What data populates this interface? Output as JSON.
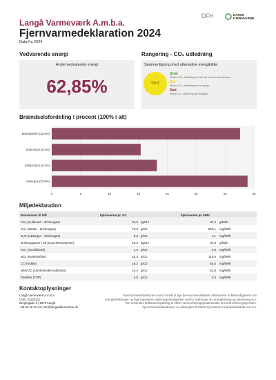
{
  "header": {
    "company": "Langå Varmeværk A.m.b.a.",
    "title": "Fjernvarmedeklaration 2024",
    "subtitle": "Data fra 2024",
    "logo_left": "DFH",
    "logo_right": "DANSK FJERNVARME"
  },
  "renewable": {
    "heading": "Vedvarende energi",
    "label": "Andel vedvarende energi",
    "value": "62,85%"
  },
  "co2": {
    "heading": "Rangering - CO₂ udledning",
    "label": "Sammenligning med alternative energikilder",
    "rating": "Gul",
    "rating_color": "#f2e21c",
    "legend": [
      {
        "label": "Grøn",
        "text": "Mindre CO₂ udledning end ain luft til vand varmepumpe",
        "color": "#3d9a3d"
      },
      {
        "label": "Gul",
        "text": "Mindre CO₂ udledning end et gasfyr",
        "color": "#e6cf12"
      },
      {
        "label": "Rød",
        "text": "Større CO₂ udledning end et gasfyr",
        "color": "#b0283e"
      }
    ]
  },
  "chart_data": {
    "type": "bar",
    "orientation": "horizontal",
    "title": "Brændselsfordeling i procent (100% i alt)",
    "categories": [
      "Brændselsfri (32,6%)",
      "Solenergi (15,4%)",
      "Elektricitet (18,2%)",
      "Naturgas (33,9%)"
    ],
    "values": [
      32.6,
      15.4,
      18.2,
      33.9
    ],
    "color": "#8c4a63",
    "xlim": [
      0,
      35
    ],
    "xticks": [
      0,
      5,
      10,
      15,
      20,
      25,
      30,
      35
    ]
  },
  "table": {
    "heading": "Miljødeklaration",
    "columns": [
      "Emissioner til luft",
      "Fjernvarme pr. GJ",
      "Fjernvarme pr. kWh"
    ],
    "rows": [
      [
        "CO₂ (Kuldioxid - drivhusgas)",
        "24,3",
        "kg/GJ",
        "87,4",
        "g/kWh"
      ],
      [
        "CH₄ (Metan - drivhusgas)",
        "70,3",
        "g/GJ",
        "253,1",
        "mg/kWh"
      ],
      [
        "N₂O (Lattergas - drivhusgas)",
        "0,3",
        "g/GJ",
        "1,1",
        "mg/kWh"
      ],
      [
        "Drivhusgasser i alt (CO2-ækvivalenter)",
        "26,3",
        "kg/GJ",
        "94,8",
        "g/kWh"
      ],
      [
        "SO₂ (Svovldioxid)",
        "1,4",
        "g/GJ",
        "5,0",
        "mg/kWh"
      ],
      [
        "NOₓ (Kvælstofilter)",
        "32,4",
        "g/GJ",
        "116,6",
        "mg/kWh"
      ],
      [
        "CO (Kulilte)",
        "18,2",
        "g/GJ",
        "65,5",
        "mg/kWh"
      ],
      [
        "NMVOC (Uforbrændte kulbrinter)",
        "14,4",
        "g/GJ",
        "51,8",
        "mg/kWh"
      ],
      [
        "Partikler (TSP)",
        "0,8",
        "g/GJ",
        "2,9",
        "mg/kWh"
      ]
    ]
  },
  "contact": {
    "heading": "Kontaktoplysninger",
    "lines": [
      "Langå Varmeværk A.m.b.a.",
      "CVR: 31223311",
      "Bergergade 6 | 8870 Langå",
      "+45 86 46 20 44 | info@langaafjernvarme.dk"
    ],
    "note": "Fjernvarmedeklarationen har til formål at øge fjernvarmeselskabets efterlevelse af Bekendtgørelse om energimærkninger og bygningsejeres oplysningsforpligtelser overfor slutbruger om energiforbrug og fakturering m.v. Der anvendes kraftvarmeopdeling at 200% varmevirkningsgradmetoden anvendt af Energistyrelsen. Fjernvarmedeklarationen er udarbejdet af Dansk Fjernvarmes Handelsselskab a.m.b.a."
  }
}
